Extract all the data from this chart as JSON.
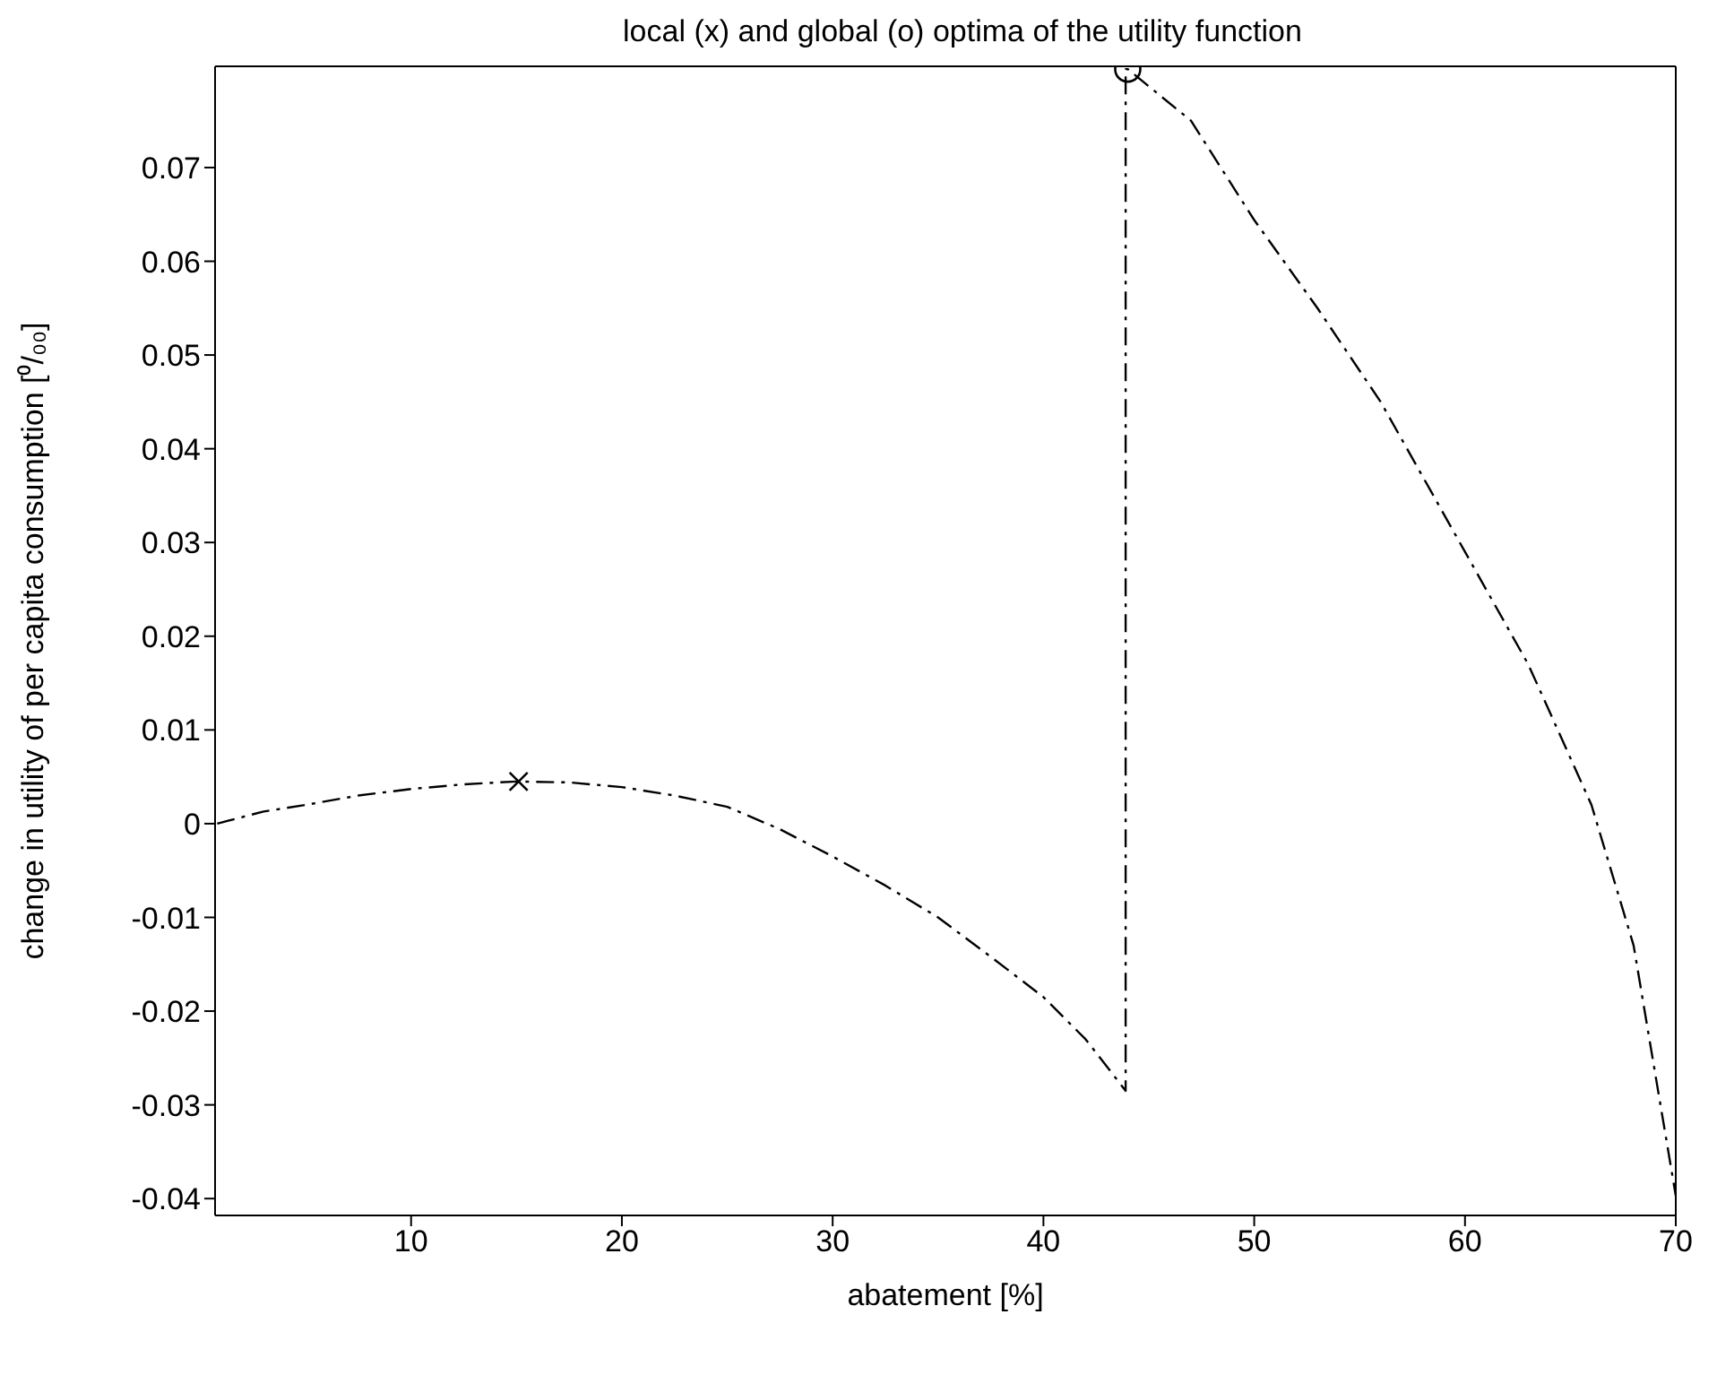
{
  "chart_data": {
    "type": "line",
    "title": "local (x) and global (o) optima of the utility function",
    "xlabel": "abatement [%]",
    "ylabel": "change in utility of per capita consumption [⁰/₀₀]",
    "series": [
      {
        "color": "#000000",
        "line_style": "dashed",
        "marker": "none",
        "x": [
          0.8,
          3,
          5,
          7.5,
          10,
          12.5,
          15,
          17.5,
          20,
          22.5,
          25,
          27.5,
          30,
          32.5,
          35,
          37.5,
          40,
          42,
          43.9,
          43.9,
          44,
          47,
          50,
          53,
          56,
          60,
          63,
          66,
          68,
          70
        ],
        "values": [
          0.0,
          0.0013,
          0.002,
          0.003,
          0.0037,
          0.0042,
          0.0045,
          0.0044,
          0.0039,
          0.003,
          0.0018,
          -0.0006,
          -0.0035,
          -0.0066,
          -0.01,
          -0.0142,
          -0.0185,
          -0.023,
          -0.0285,
          0.0805,
          0.0805,
          0.075,
          0.0644,
          0.055,
          0.045,
          0.029,
          0.017,
          0.002,
          -0.013,
          -0.0397
        ]
      },
      {
        "type": "scatter",
        "color": "#000000",
        "marker": "cross",
        "x": [
          15.1
        ],
        "values": [
          0.0045
        ]
      },
      {
        "type": "scatter",
        "color": "#000000",
        "marker": "circle",
        "x": [
          44
        ],
        "values": [
          0.0805
        ]
      }
    ],
    "xlim": [
      0.7,
      70
    ],
    "xticks": [
      10,
      20,
      30,
      40,
      50,
      60,
      70
    ],
    "ylim": [
      -0.0418,
      0.0808
    ],
    "yticks": [
      -0.04,
      -0.03,
      -0.02,
      -0.01,
      0,
      0.01,
      0.02,
      0.03,
      0.04,
      0.05,
      0.06,
      0.07
    ],
    "grid": false
  }
}
